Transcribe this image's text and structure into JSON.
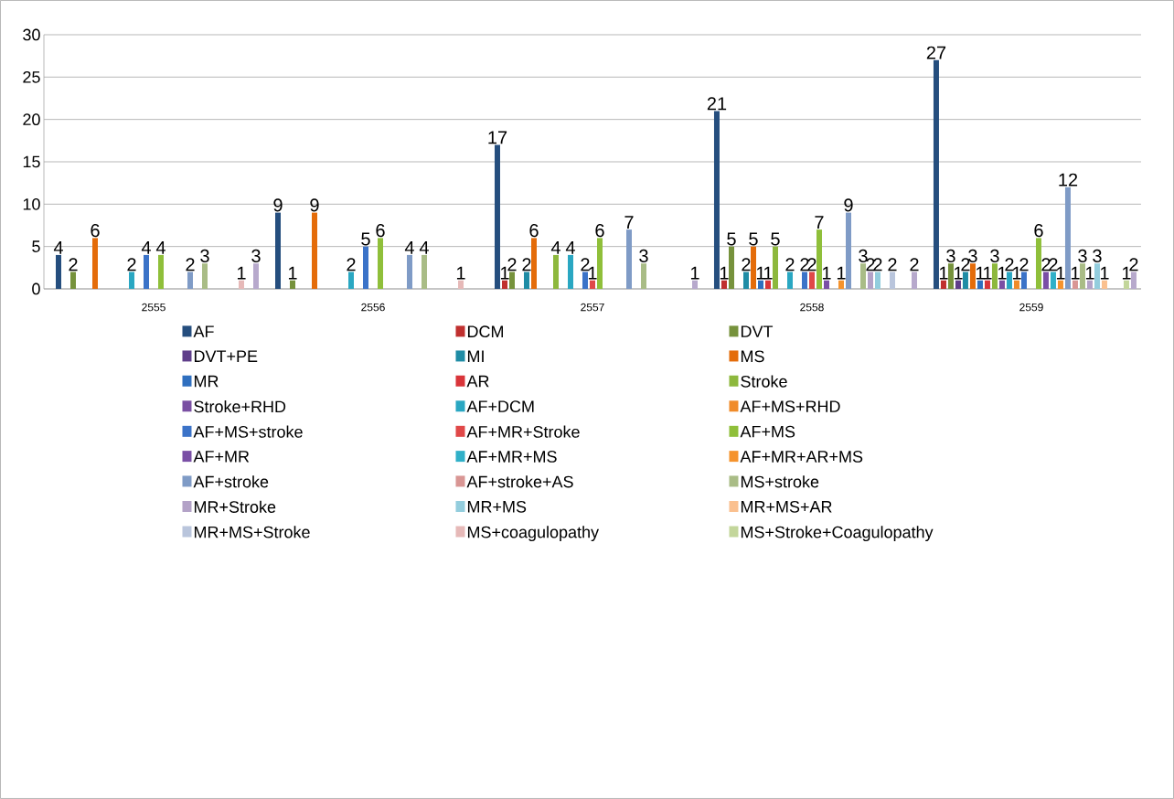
{
  "chart_data": {
    "type": "bar",
    "categories": [
      "2555",
      "2556",
      "2557",
      "2558",
      "2559"
    ],
    "ylim": [
      0,
      30
    ],
    "yticks": [
      0,
      5,
      10,
      15,
      20,
      25,
      30
    ],
    "grid": "y",
    "legend": "bottom",
    "data_labels": true,
    "series": [
      {
        "name": "AF",
        "color": "#254e7e",
        "values": [
          4,
          9,
          17,
          21,
          27
        ]
      },
      {
        "name": "DCM",
        "color": "#c0302f",
        "values": [
          null,
          null,
          1,
          1,
          1
        ]
      },
      {
        "name": "DVT",
        "color": "#76923c",
        "values": [
          2,
          1,
          2,
          5,
          3
        ]
      },
      {
        "name": "DVT+PE",
        "color": "#5f3e8a",
        "values": [
          null,
          null,
          null,
          null,
          1
        ]
      },
      {
        "name": "MI",
        "color": "#1f8ca5",
        "values": [
          null,
          null,
          2,
          2,
          2
        ]
      },
      {
        "name": "MS",
        "color": "#e46c0a",
        "values": [
          6,
          9,
          6,
          5,
          3
        ]
      },
      {
        "name": "MR",
        "color": "#2f6fbf",
        "values": [
          null,
          null,
          null,
          1,
          1
        ]
      },
      {
        "name": "AR",
        "color": "#d9353a",
        "values": [
          null,
          null,
          null,
          1,
          1
        ]
      },
      {
        "name": "Stroke",
        "color": "#8db83d",
        "values": [
          null,
          null,
          4,
          5,
          3
        ]
      },
      {
        "name": "Stroke+RHD",
        "color": "#7a4fa3",
        "values": [
          null,
          null,
          null,
          null,
          1
        ]
      },
      {
        "name": "AF+DCM",
        "color": "#2aa7c2",
        "values": [
          2,
          2,
          4,
          2,
          2
        ]
      },
      {
        "name": "AF+MS+RHD",
        "color": "#f08b2a",
        "values": [
          null,
          null,
          null,
          null,
          1
        ]
      },
      {
        "name": "AF+MS+stroke",
        "color": "#3b73c8",
        "values": [
          4,
          5,
          2,
          2,
          2
        ]
      },
      {
        "name": "AF+MR+Stroke",
        "color": "#e04848",
        "values": [
          null,
          null,
          1,
          2,
          null
        ]
      },
      {
        "name": "AF+MS",
        "color": "#8fbf3a",
        "values": [
          4,
          6,
          6,
          7,
          6
        ]
      },
      {
        "name": "AF+MR",
        "color": "#7a4fa6",
        "values": [
          null,
          null,
          null,
          1,
          2
        ]
      },
      {
        "name": "AF+MR+MS",
        "color": "#30b0c8",
        "values": [
          null,
          null,
          null,
          null,
          2
        ]
      },
      {
        "name": "AF+MR+AR+MS",
        "color": "#f5932d",
        "values": [
          null,
          null,
          null,
          1,
          1
        ]
      },
      {
        "name": "AF+stroke",
        "color": "#7f9bc6",
        "values": [
          2,
          4,
          7,
          9,
          12
        ]
      },
      {
        "name": "AF+stroke+AS",
        "color": "#d99694",
        "values": [
          null,
          null,
          null,
          null,
          1
        ]
      },
      {
        "name": "MS+stroke",
        "color": "#a9bc86",
        "values": [
          3,
          4,
          3,
          3,
          3
        ]
      },
      {
        "name": "MR+Stroke",
        "color": "#b3a2c7",
        "values": [
          null,
          null,
          null,
          2,
          1
        ]
      },
      {
        "name": "MR+MS",
        "color": "#93cddd",
        "values": [
          null,
          null,
          null,
          2,
          3
        ]
      },
      {
        "name": "MR+MS+AR",
        "color": "#fac08f",
        "values": [
          null,
          null,
          null,
          null,
          1
        ]
      },
      {
        "name": "MR+MS+Stroke",
        "color": "#b9c5dc",
        "values": [
          null,
          null,
          null,
          2,
          null
        ]
      },
      {
        "name": "MS+coagulopathy",
        "color": "#e6b9b8",
        "values": [
          1,
          1,
          null,
          null,
          null
        ]
      },
      {
        "name": "MS+Stroke+Coagulopathy",
        "color": "#c3d69b",
        "values": [
          null,
          null,
          null,
          null,
          1
        ]
      },
      {
        "color": "#b7a9cc",
        "values": [
          3,
          null,
          1,
          2,
          2
        ]
      }
    ]
  }
}
